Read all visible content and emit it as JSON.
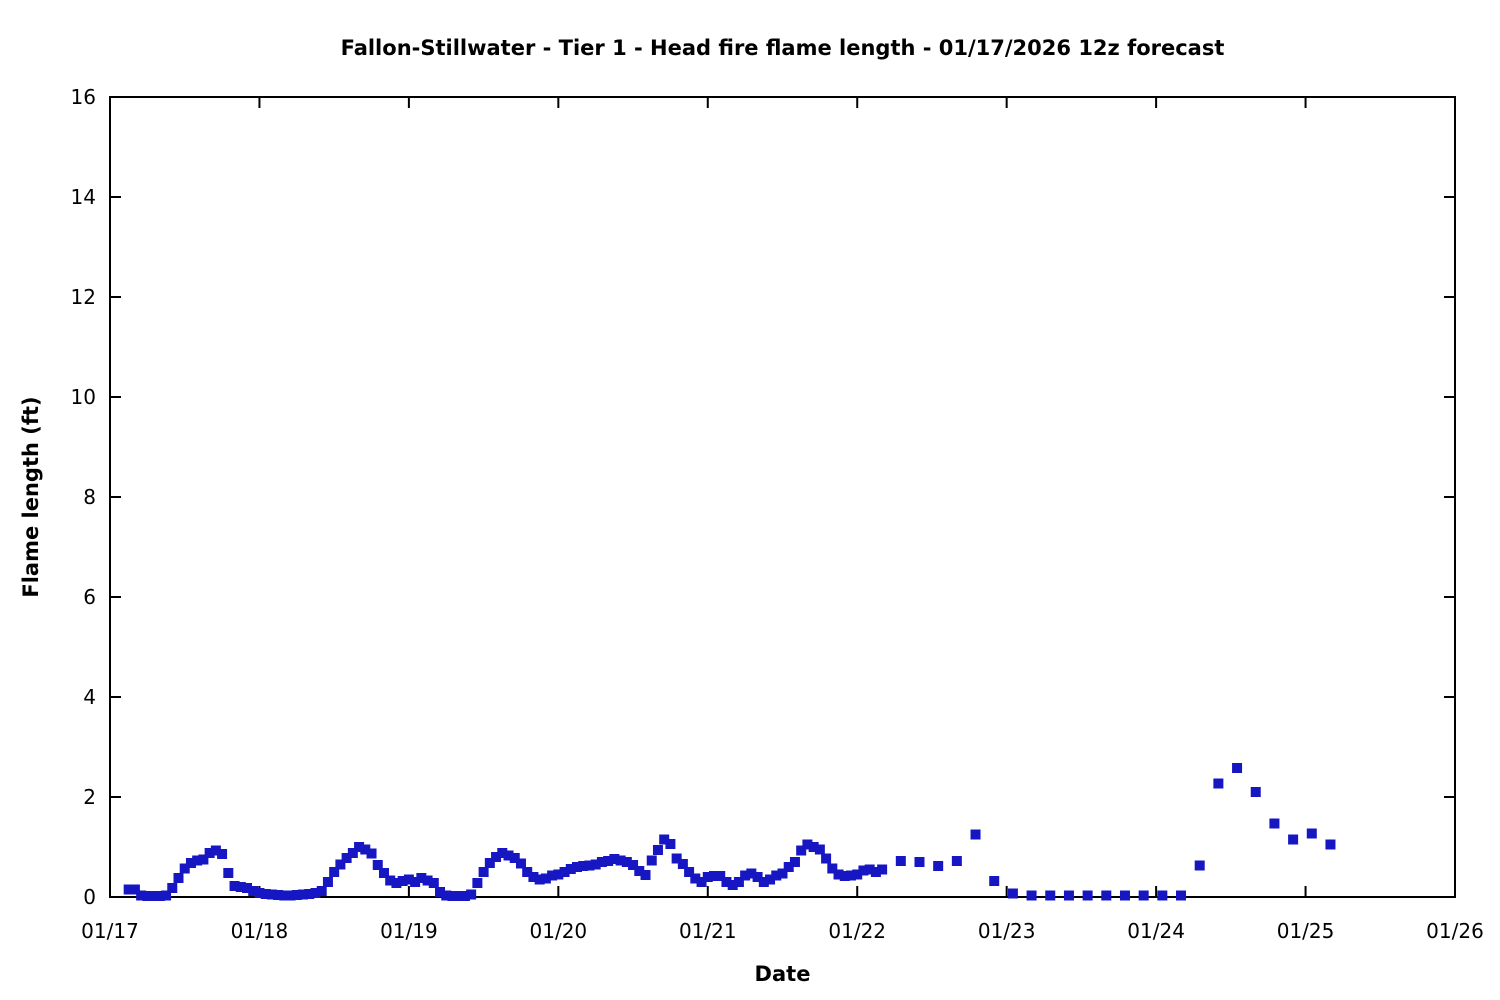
{
  "figure": {
    "title": "Fallon-Stillwater - Tier 1 - Head fire flame length - 01/17/2026 12z forecast",
    "xlabel": "Date",
    "ylabel": "Flame length (ft)"
  },
  "chart_data": {
    "type": "scatter",
    "title": "Fallon-Stillwater - Tier 1 - Head fire flame length - 01/17/2026 12z forecast",
    "xlabel": "Date",
    "ylabel": "Flame length (ft)",
    "x_tick_labels": [
      "01/17",
      "01/18",
      "01/19",
      "01/20",
      "01/21",
      "01/22",
      "01/23",
      "01/24",
      "01/25",
      "01/26"
    ],
    "y_ticks": [
      0,
      2,
      4,
      6,
      8,
      10,
      12,
      14,
      16
    ],
    "ylim": [
      0,
      16
    ],
    "xlim_hours": [
      0,
      216
    ],
    "x_axis_note": "x expressed as hours after 01/17 00z; one day = 24 h; ticks at day boundaries",
    "grid": false,
    "legend": null,
    "marker": "filled-square",
    "marker_size_px": 10,
    "marker_color": "#1616c2",
    "axis_color": "#000000",
    "background_color": "#ffffff",
    "series_name": "Head fire flame length (ft)",
    "points": [
      [
        3,
        0.15
      ],
      [
        4,
        0.15
      ],
      [
        5,
        0.03
      ],
      [
        6,
        0.02
      ],
      [
        7,
        0.02
      ],
      [
        8,
        0.02
      ],
      [
        9,
        0.03
      ],
      [
        10,
        0.18
      ],
      [
        11,
        0.38
      ],
      [
        12,
        0.57
      ],
      [
        13,
        0.68
      ],
      [
        14,
        0.73
      ],
      [
        15,
        0.75
      ],
      [
        16,
        0.88
      ],
      [
        17,
        0.93
      ],
      [
        18,
        0.86
      ],
      [
        19,
        0.48
      ],
      [
        20,
        0.22
      ],
      [
        21,
        0.2
      ],
      [
        22,
        0.18
      ],
      [
        23,
        0.12
      ],
      [
        24,
        0.08
      ],
      [
        25,
        0.06
      ],
      [
        26,
        0.05
      ],
      [
        27,
        0.04
      ],
      [
        28,
        0.03
      ],
      [
        29,
        0.03
      ],
      [
        30,
        0.04
      ],
      [
        31,
        0.05
      ],
      [
        32,
        0.06
      ],
      [
        33,
        0.08
      ],
      [
        34,
        0.12
      ],
      [
        35,
        0.3
      ],
      [
        36,
        0.5
      ],
      [
        37,
        0.65
      ],
      [
        38,
        0.78
      ],
      [
        39,
        0.88
      ],
      [
        40,
        1.0
      ],
      [
        41,
        0.95
      ],
      [
        42,
        0.87
      ],
      [
        43,
        0.64
      ],
      [
        44,
        0.48
      ],
      [
        45,
        0.33
      ],
      [
        46,
        0.28
      ],
      [
        47,
        0.32
      ],
      [
        48,
        0.35
      ],
      [
        49,
        0.3
      ],
      [
        50,
        0.38
      ],
      [
        51,
        0.33
      ],
      [
        52,
        0.28
      ],
      [
        53,
        0.1
      ],
      [
        54,
        0.03
      ],
      [
        55,
        0.02
      ],
      [
        56,
        0.02
      ],
      [
        57,
        0.02
      ],
      [
        58,
        0.05
      ],
      [
        59,
        0.28
      ],
      [
        60,
        0.5
      ],
      [
        61,
        0.68
      ],
      [
        62,
        0.8
      ],
      [
        63,
        0.88
      ],
      [
        64,
        0.83
      ],
      [
        65,
        0.78
      ],
      [
        66,
        0.67
      ],
      [
        67,
        0.5
      ],
      [
        68,
        0.4
      ],
      [
        69,
        0.35
      ],
      [
        70,
        0.37
      ],
      [
        71,
        0.43
      ],
      [
        72,
        0.45
      ],
      [
        73,
        0.5
      ],
      [
        74,
        0.56
      ],
      [
        75,
        0.6
      ],
      [
        76,
        0.62
      ],
      [
        77,
        0.63
      ],
      [
        78,
        0.65
      ],
      [
        79,
        0.7
      ],
      [
        80,
        0.72
      ],
      [
        81,
        0.76
      ],
      [
        82,
        0.73
      ],
      [
        83,
        0.7
      ],
      [
        84,
        0.64
      ],
      [
        85,
        0.52
      ],
      [
        86,
        0.44
      ],
      [
        87,
        0.73
      ],
      [
        88,
        0.94
      ],
      [
        89,
        1.15
      ],
      [
        90,
        1.06
      ],
      [
        91,
        0.77
      ],
      [
        92,
        0.66
      ],
      [
        93,
        0.5
      ],
      [
        94,
        0.37
      ],
      [
        95,
        0.3
      ],
      [
        96,
        0.4
      ],
      [
        97,
        0.42
      ],
      [
        98,
        0.42
      ],
      [
        99,
        0.3
      ],
      [
        100,
        0.24
      ],
      [
        101,
        0.3
      ],
      [
        102,
        0.43
      ],
      [
        103,
        0.47
      ],
      [
        104,
        0.4
      ],
      [
        105,
        0.3
      ],
      [
        106,
        0.35
      ],
      [
        107,
        0.43
      ],
      [
        108,
        0.47
      ],
      [
        109,
        0.6
      ],
      [
        110,
        0.7
      ],
      [
        111,
        0.93
      ],
      [
        112,
        1.05
      ],
      [
        113,
        1.0
      ],
      [
        114,
        0.95
      ],
      [
        115,
        0.77
      ],
      [
        116,
        0.57
      ],
      [
        117,
        0.45
      ],
      [
        118,
        0.42
      ],
      [
        119,
        0.43
      ],
      [
        120,
        0.45
      ],
      [
        121,
        0.53
      ],
      [
        122,
        0.55
      ],
      [
        123,
        0.5
      ],
      [
        124,
        0.55
      ],
      [
        127,
        0.72
      ],
      [
        130,
        0.7
      ],
      [
        133,
        0.62
      ],
      [
        136,
        0.72
      ],
      [
        139,
        1.25
      ],
      [
        142,
        0.32
      ],
      [
        145,
        0.07
      ],
      [
        148,
        0.03
      ],
      [
        151,
        0.03
      ],
      [
        154,
        0.03
      ],
      [
        157,
        0.03
      ],
      [
        160,
        0.03
      ],
      [
        163,
        0.03
      ],
      [
        166,
        0.03
      ],
      [
        169,
        0.03
      ],
      [
        172,
        0.03
      ],
      [
        175,
        0.63
      ],
      [
        178,
        2.27
      ],
      [
        181,
        2.58
      ],
      [
        184,
        2.1
      ],
      [
        187,
        1.47
      ],
      [
        190,
        1.15
      ],
      [
        193,
        1.27
      ],
      [
        196,
        1.05
      ]
    ]
  }
}
